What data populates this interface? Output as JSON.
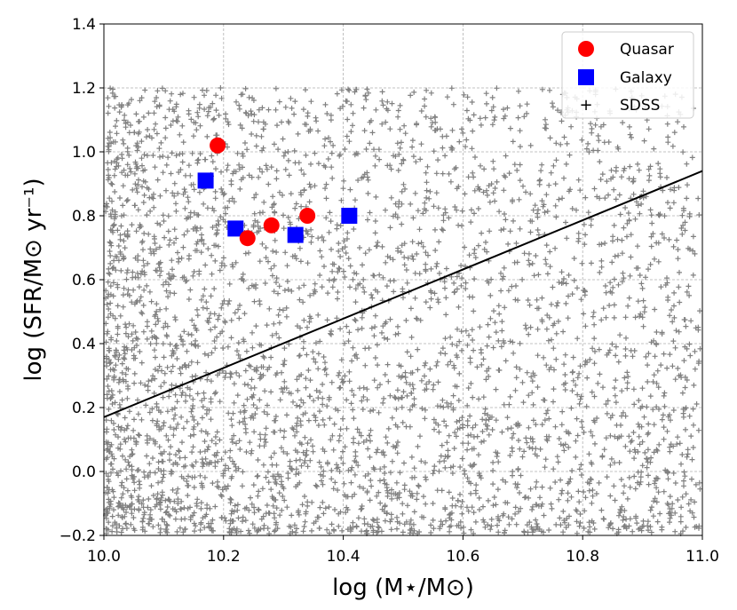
{
  "chart_data": {
    "type": "scatter",
    "xlabel": "log (M⋆/M⊙)",
    "ylabel": "log (SFR/M⊙ yr⁻¹)",
    "xlim": [
      10.0,
      11.0
    ],
    "ylim": [
      -0.2,
      1.4
    ],
    "x_ticks": [
      10.0,
      10.2,
      10.4,
      10.6,
      10.8,
      11.0
    ],
    "y_ticks": [
      -0.2,
      0.0,
      0.2,
      0.4,
      0.6,
      0.8,
      1.0,
      1.2,
      1.4
    ],
    "x_tick_labels": [
      "10.0",
      "10.2",
      "10.4",
      "10.6",
      "10.8",
      "11.0"
    ],
    "y_tick_labels": [
      "−0.2",
      "0.0",
      "0.2",
      "0.4",
      "0.6",
      "0.8",
      "1.0",
      "1.2",
      "1.4"
    ],
    "grid": true,
    "legend_position": "top-right",
    "series": [
      {
        "name": "Quasar",
        "marker": "circle",
        "color": "#ff0000",
        "points": [
          [
            10.19,
            1.02
          ],
          [
            10.24,
            0.73
          ],
          [
            10.28,
            0.77
          ],
          [
            10.34,
            0.8
          ]
        ]
      },
      {
        "name": "Galaxy",
        "marker": "square",
        "color": "#0000ff",
        "points": [
          [
            10.17,
            0.91
          ],
          [
            10.22,
            0.76
          ],
          [
            10.32,
            0.74
          ],
          [
            10.41,
            0.8
          ]
        ]
      },
      {
        "name": "SDSS",
        "marker": "plus",
        "color": "#808080",
        "n_points": 4000,
        "note_distribution": "dense cloud, x 10.0-11.0, y -0.2-1.2, densest at low x and low y"
      }
    ],
    "fit_line": {
      "color": "#000000",
      "x": [
        10.0,
        11.0
      ],
      "y": [
        0.17,
        0.94
      ]
    }
  }
}
